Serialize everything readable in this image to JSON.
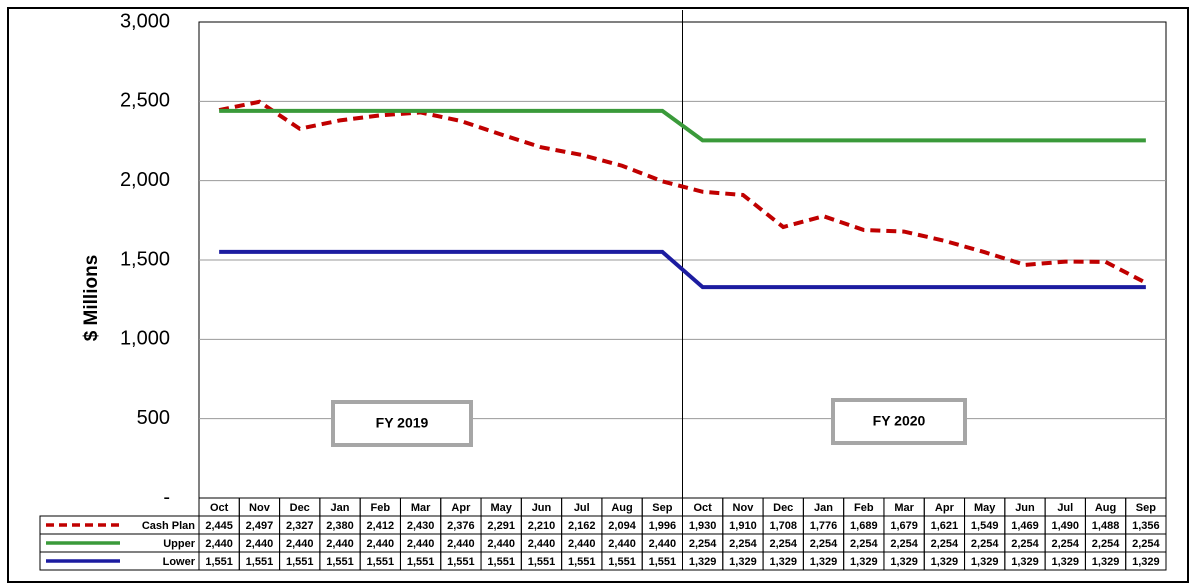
{
  "chart_data": {
    "type": "line",
    "y_label": "$ Millions",
    "annotations": [
      "FY 2019",
      "FY 2020"
    ],
    "categories": [
      "Oct",
      "Nov",
      "Dec",
      "Jan",
      "Feb",
      "Mar",
      "Apr",
      "May",
      "Jun",
      "Jul",
      "Aug",
      "Sep",
      "Oct",
      "Nov",
      "Dec",
      "Jan",
      "Feb",
      "Mar",
      "Apr",
      "May",
      "Jun",
      "Jul",
      "Aug",
      "Sep"
    ],
    "series": [
      {
        "name": "Cash Plan",
        "color": "#c00000",
        "dashed": true,
        "values": [
          2445,
          2497,
          2327,
          2380,
          2412,
          2430,
          2376,
          2291,
          2210,
          2162,
          2094,
          1996,
          1930,
          1910,
          1708,
          1776,
          1689,
          1679,
          1621,
          1549,
          1469,
          1490,
          1488,
          1356
        ],
        "value_labels": [
          "2,445",
          "2,497",
          "2,327",
          "2,380",
          "2,412",
          "2,430",
          "2,376",
          "2,291",
          "2,210",
          "2,162",
          "2,094",
          "1,996",
          "1,930",
          "1,910",
          "1,708",
          "1,776",
          "1,689",
          "1,679",
          "1,621",
          "1,549",
          "1,469",
          "1,490",
          "1,488",
          "1,356"
        ]
      },
      {
        "name": "Upper",
        "color": "#3a9a3a",
        "dashed": false,
        "values": [
          2440,
          2440,
          2440,
          2440,
          2440,
          2440,
          2440,
          2440,
          2440,
          2440,
          2440,
          2440,
          2254,
          2254,
          2254,
          2254,
          2254,
          2254,
          2254,
          2254,
          2254,
          2254,
          2254,
          2254
        ],
        "value_labels": [
          "2,440",
          "2,440",
          "2,440",
          "2,440",
          "2,440",
          "2,440",
          "2,440",
          "2,440",
          "2,440",
          "2,440",
          "2,440",
          "2,440",
          "2,254",
          "2,254",
          "2,254",
          "2,254",
          "2,254",
          "2,254",
          "2,254",
          "2,254",
          "2,254",
          "2,254",
          "2,254",
          "2,254"
        ]
      },
      {
        "name": "Lower",
        "color": "#1c1ca0",
        "dashed": false,
        "values": [
          1551,
          1551,
          1551,
          1551,
          1551,
          1551,
          1551,
          1551,
          1551,
          1551,
          1551,
          1551,
          1329,
          1329,
          1329,
          1329,
          1329,
          1329,
          1329,
          1329,
          1329,
          1329,
          1329,
          1329
        ],
        "value_labels": [
          "1,551",
          "1,551",
          "1,551",
          "1,551",
          "1,551",
          "1,551",
          "1,551",
          "1,551",
          "1,551",
          "1,551",
          "1,551",
          "1,551",
          "1,329",
          "1,329",
          "1,329",
          "1,329",
          "1,329",
          "1,329",
          "1,329",
          "1,329",
          "1,329",
          "1,329",
          "1,329",
          "1,329"
        ]
      }
    ],
    "ylim": [
      0,
      3000
    ],
    "yticks": [
      {
        "value": 0,
        "label": "-"
      },
      {
        "value": 500,
        "label": "500"
      },
      {
        "value": 1000,
        "label": "1,000"
      },
      {
        "value": 1500,
        "label": "1,500"
      },
      {
        "value": 2000,
        "label": "2,000"
      },
      {
        "value": 2500,
        "label": "2,500"
      },
      {
        "value": 3000,
        "label": "3,000"
      }
    ],
    "grid": true
  }
}
